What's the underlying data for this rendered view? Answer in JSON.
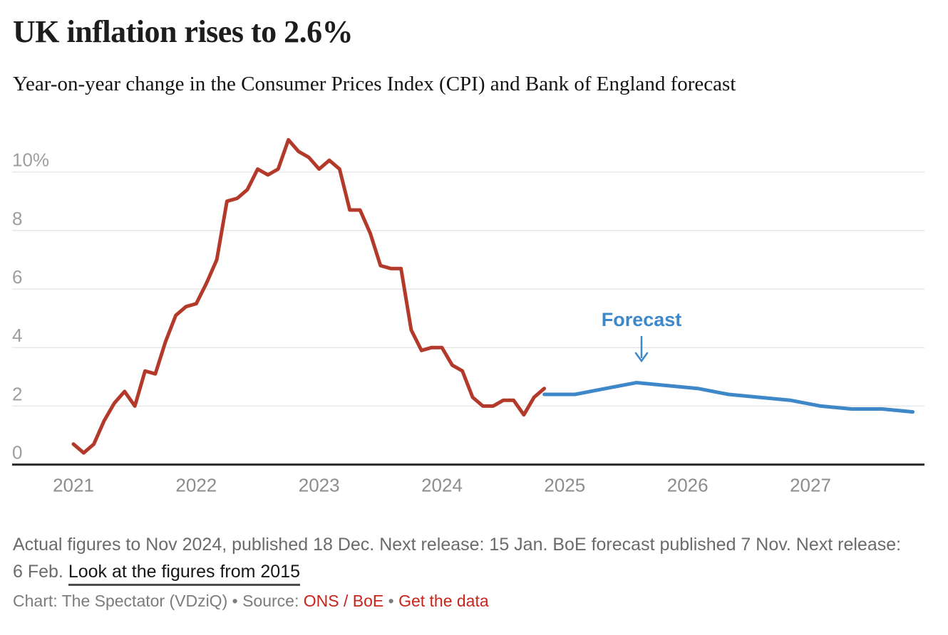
{
  "header": {
    "title": "UK inflation rises to 2.6%",
    "subtitle": "Year-on-year change in the Consumer Prices Index (CPI) and Bank of England forecast"
  },
  "chart_data": {
    "type": "line",
    "title": "UK inflation rises to 2.6%",
    "subtitle": "Year-on-year change in the Consumer Prices Index (CPI) and Bank of England forecast",
    "xlabel": "",
    "ylabel": "",
    "x_unit": "months since Jan 2021",
    "x_start": "2021-01",
    "x_end": "2027-11",
    "ylim": [
      0,
      11.5
    ],
    "grid": true,
    "legend_position": "none",
    "yticks": [
      0,
      2,
      4,
      6,
      8,
      10
    ],
    "ytick_labels": [
      "0",
      "2",
      "4",
      "6",
      "8",
      "10%"
    ],
    "xtick_labels": [
      "2021",
      "2022",
      "2023",
      "2024",
      "2025",
      "2026",
      "2027"
    ],
    "series": [
      {
        "id": "cpi-actual",
        "name": "CPI year-on-year change (actual, ONS)",
        "color": "#b33a2b",
        "start_month_index": 0,
        "step_months": 1,
        "values": [
          0.7,
          0.4,
          0.7,
          1.5,
          2.1,
          2.5,
          2.0,
          3.2,
          3.1,
          4.2,
          5.1,
          5.4,
          5.5,
          6.2,
          7.0,
          9.0,
          9.1,
          9.4,
          10.1,
          9.9,
          10.1,
          11.1,
          10.7,
          10.5,
          10.1,
          10.4,
          10.1,
          8.7,
          8.7,
          7.9,
          6.8,
          6.7,
          6.7,
          4.6,
          3.9,
          4.0,
          4.0,
          3.4,
          3.2,
          2.3,
          2.0,
          2.0,
          2.2,
          2.2,
          1.7,
          2.3,
          2.6
        ]
      },
      {
        "id": "boe-forecast",
        "name": "Bank of England forecast (quarterly)",
        "color": "#3e87c8",
        "start_month_index": 46,
        "step_months": 3,
        "values": [
          2.4,
          2.4,
          2.6,
          2.8,
          2.7,
          2.6,
          2.4,
          2.3,
          2.2,
          2.0,
          1.9,
          1.9,
          1.8
        ]
      }
    ],
    "annotation": {
      "label": "Forecast",
      "color": "#3e87c8",
      "points_to": "forecast peak, mid-2025 (~2.8%)"
    }
  },
  "footnote": {
    "line1": "Actual figures to Nov 2024, published 18 Dec. Next release: 15 Jan. BoE forecast published 7 Nov. Next release:",
    "line2_prefix": "6 Feb. ",
    "link_label": "Look at the figures from 2015"
  },
  "byline": {
    "prefix": "Chart: The Spectator (VDziQ) • Source: ",
    "source_link": "ONS / BoE",
    "separator": " • ",
    "data_link": "Get the data",
    "link_color": "#c9241a"
  }
}
